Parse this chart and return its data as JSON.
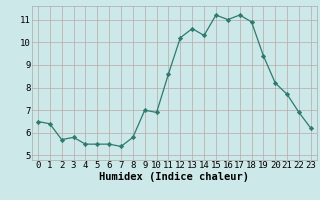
{
  "x": [
    0,
    1,
    2,
    3,
    4,
    5,
    6,
    7,
    8,
    9,
    10,
    11,
    12,
    13,
    14,
    15,
    16,
    17,
    18,
    19,
    20,
    21,
    22,
    23
  ],
  "y": [
    6.5,
    6.4,
    5.7,
    5.8,
    5.5,
    5.5,
    5.5,
    5.4,
    5.8,
    7.0,
    6.9,
    8.6,
    10.2,
    10.6,
    10.3,
    11.2,
    11.0,
    11.2,
    10.9,
    9.4,
    8.2,
    7.7,
    6.9,
    6.2
  ],
  "xlabel": "Humidex (Indice chaleur)",
  "xlim": [
    -0.5,
    23.5
  ],
  "ylim": [
    4.8,
    11.6
  ],
  "yticks": [
    5,
    6,
    7,
    8,
    9,
    10,
    11
  ],
  "xticks": [
    0,
    1,
    2,
    3,
    4,
    5,
    6,
    7,
    8,
    9,
    10,
    11,
    12,
    13,
    14,
    15,
    16,
    17,
    18,
    19,
    20,
    21,
    22,
    23
  ],
  "line_color": "#2d7a6e",
  "marker": "D",
  "marker_size": 2.2,
  "bg_color": "#cde8e8",
  "grid_color": "#b8a8a8",
  "xlabel_fontsize": 7.5,
  "tick_fontsize": 6.5
}
